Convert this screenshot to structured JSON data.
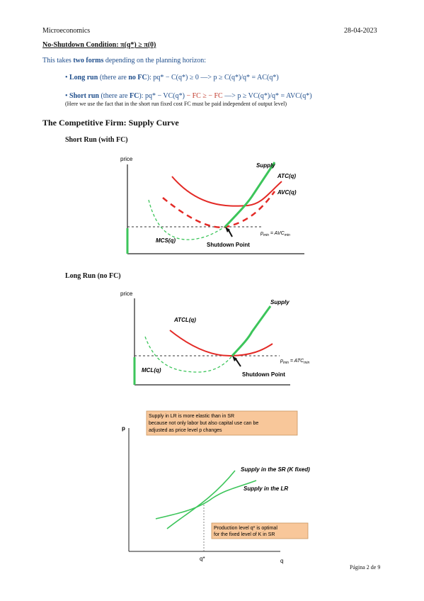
{
  "header": {
    "subject": "Microeconomics",
    "date": "28-04-2023"
  },
  "shutdown": {
    "title": "No-Shutdown Condition: π(q*) ≥ π(0)",
    "intro_pre": "This takes ",
    "intro_bold": "two forms",
    "intro_post": " depending on the planning horizon:",
    "lr_label": "Long run",
    "lr_paren_pre": " (there are ",
    "lr_paren_bold": "no FC",
    "lr_paren_post": "): ",
    "lr_formula": "pq* − C(q*) ≥ 0 —> p ≥ C(q*)/q* = AC(q*)",
    "sr_label": "Short run",
    "sr_paren_pre": " (there are ",
    "sr_paren_bold": "FC",
    "sr_paren_post": "): ",
    "sr_formula_a": "pq* − VC(q*) ",
    "sr_formula_fc": "− FC ≥ − FC",
    "sr_formula_b": " —> p ≥ VC(q*)/q* = AVC(q*)",
    "note": "(Here we use the fact that in the short run fixed cost FC must be paid independent of output level)"
  },
  "section": {
    "title": "The Competitive Firm: Supply Curve",
    "sr_heading": "Short Run (with FC)",
    "lr_heading": "Long Run (no FC)"
  },
  "chart_sr": {
    "y_label": "price",
    "supply": "Supply",
    "atc": "ATC(q)",
    "avc": "AVC(q)",
    "mc": "MCS(q)",
    "shutdown": "Shutdown Point",
    "pmin": "p",
    "pmin_sub": "min",
    "pmin_eq": " = AVC",
    "pmin_eq_sub": "min"
  },
  "chart_lr": {
    "y_label": "price",
    "supply": "Supply",
    "atcl": "ATCL(q)",
    "mc": "MCL(q)",
    "shutdown": "Shutdown Point",
    "pmin": "p",
    "pmin_sub": "min",
    "pmin_eq": " = ATC",
    "pmin_eq_sub": "min"
  },
  "chart_elastic": {
    "y_label": "p",
    "x_label": "q",
    "q_star": "q*",
    "note_top_1": "Supply in LR is more elastic than in SR",
    "note_top_2": "because not only labor but also capital use can be",
    "note_top_3": "adjusted as price level  p changes",
    "sr_curve": "Supply in the SR (K fixed)",
    "lr_curve": "Supply in the LR",
    "note_bot_1": "Production level q* is optimal",
    "note_bot_2": "for the fixed level of K in SR"
  },
  "footer": {
    "page": "Página 2 de 9"
  },
  "colors": {
    "blue": "#1f4e8c",
    "red": "#e32a26",
    "green": "#3cc55a",
    "box": "#f8c79a"
  }
}
